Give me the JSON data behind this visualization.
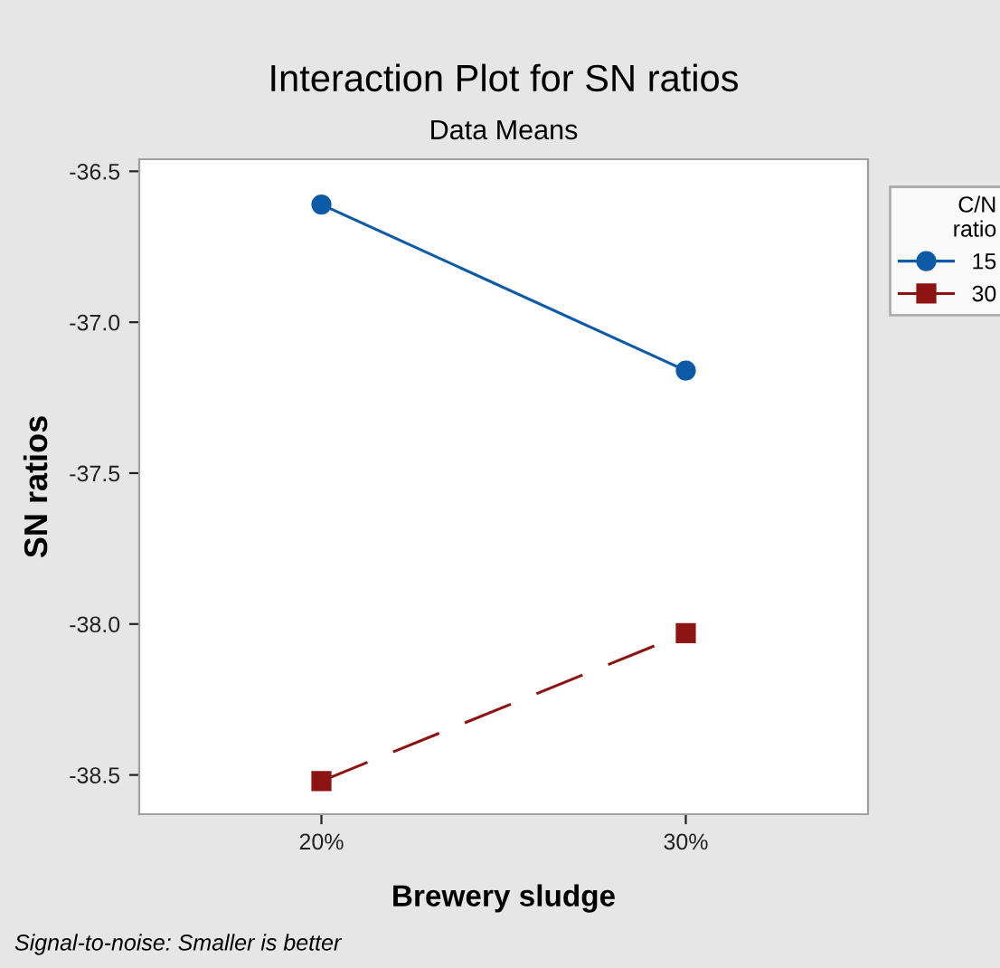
{
  "chart_data": {
    "type": "line",
    "title": "Interaction Plot for SN ratios",
    "subtitle": "Data Means",
    "xlabel": "Brewery sludge",
    "ylabel": "SN ratios",
    "legend_title": "C/N\nratio",
    "categories": [
      "20%",
      "30%"
    ],
    "series": [
      {
        "name": "15",
        "color": "#0d5aa7",
        "values": [
          -36.61,
          -37.16
        ],
        "marker": "circle",
        "line_style": "solid"
      },
      {
        "name": "30",
        "color": "#8e1414",
        "values": [
          -38.52,
          -38.03
        ],
        "marker": "square",
        "line_style": "dashed"
      }
    ],
    "ylim": [
      -38.63,
      -36.46
    ],
    "yticks": [
      {
        "value": -36.5,
        "label": "-36.5"
      },
      {
        "value": -37.0,
        "label": "-37.0"
      },
      {
        "value": -37.5,
        "label": "-37.5"
      },
      {
        "value": -38.0,
        "label": "-38.0"
      },
      {
        "value": -38.5,
        "label": "-38.5"
      }
    ],
    "grid": false,
    "legend": "top right",
    "annotations": [
      "Signal-to-noise: Smaller is better"
    ]
  }
}
